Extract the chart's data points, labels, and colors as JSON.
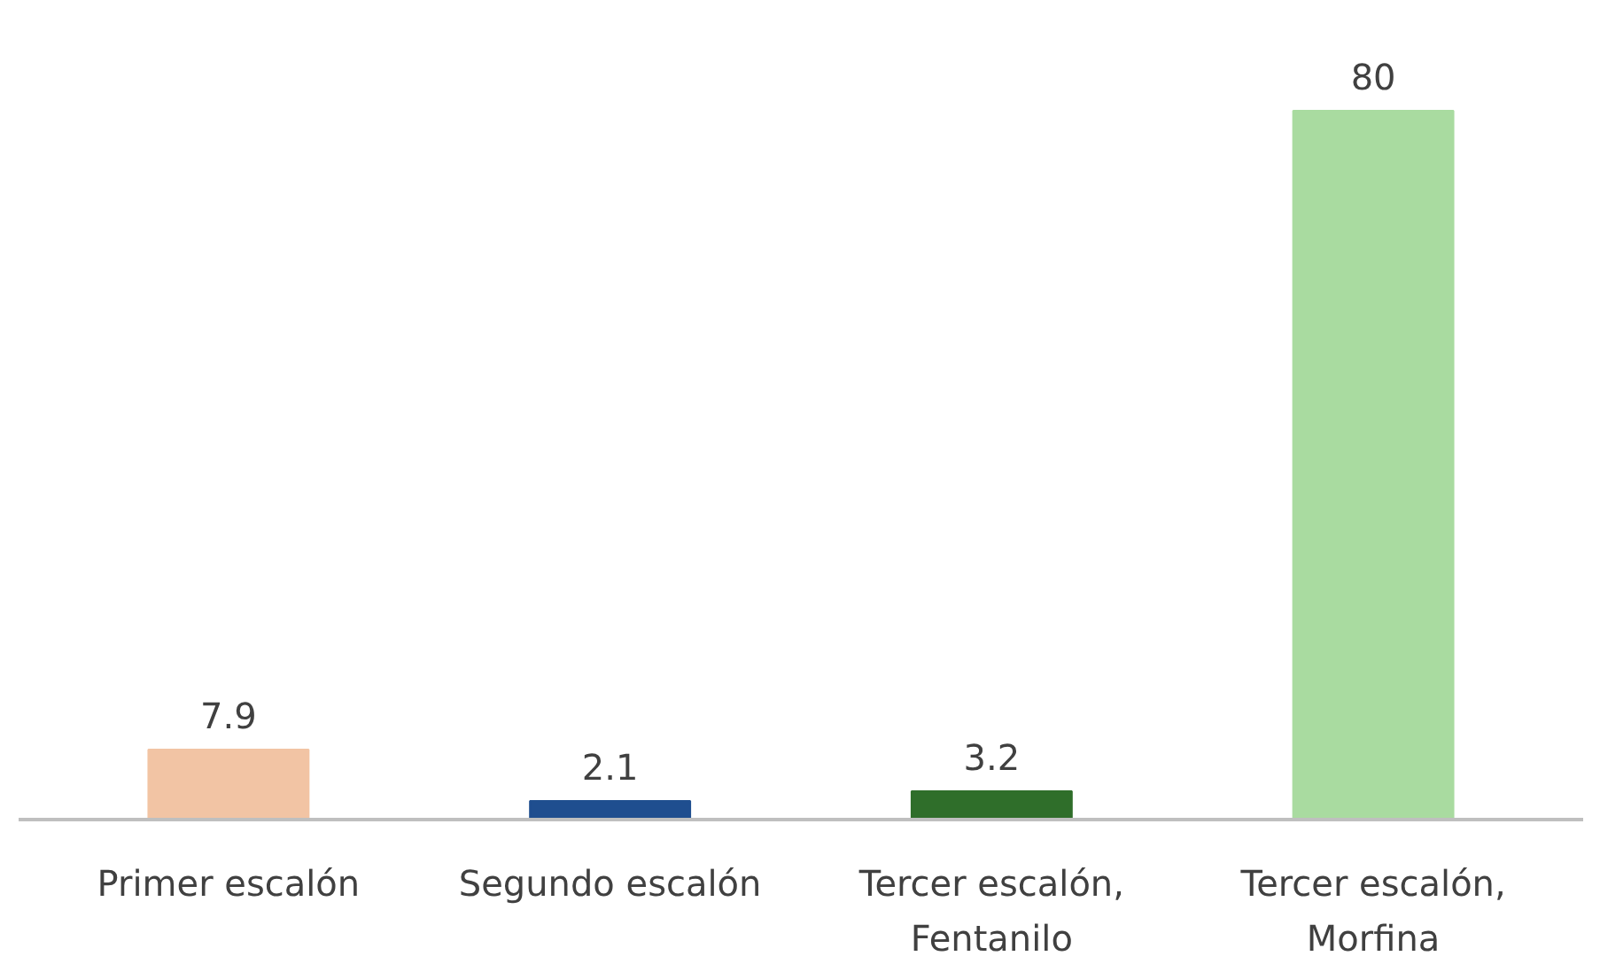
{
  "chart_data": {
    "type": "bar",
    "categories": [
      "Primer escalón",
      "Segundo escalón",
      "Tercer escalón,\nFentanilo",
      "Tercer escalón,\nMorfina"
    ],
    "values": [
      7.9,
      2.1,
      3.2,
      80
    ],
    "colors": [
      "#f2c4a4",
      "#1f4e8f",
      "#2f6e2a",
      "#a9dba0"
    ],
    "data_labels": true
  }
}
